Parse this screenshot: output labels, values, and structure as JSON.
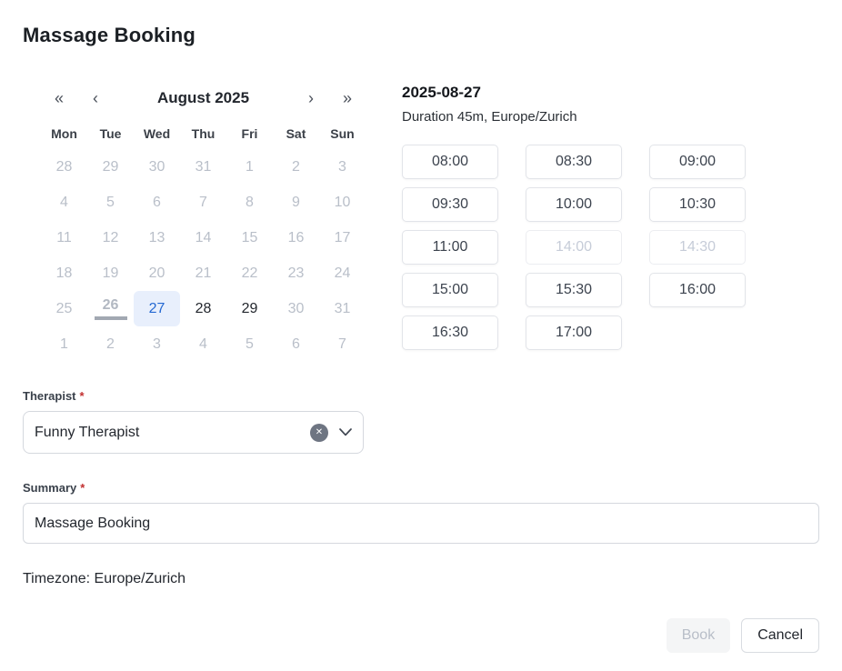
{
  "title": "Massage Booking",
  "calendar": {
    "nav": {
      "first": "«",
      "prev": "‹",
      "label": "August 2025",
      "next": "›",
      "last": "»"
    },
    "weekdays": [
      "Mon",
      "Tue",
      "Wed",
      "Thu",
      "Fri",
      "Sat",
      "Sun"
    ],
    "weeks": [
      [
        {
          "day": "28",
          "state": "muted"
        },
        {
          "day": "29",
          "state": "muted"
        },
        {
          "day": "30",
          "state": "muted"
        },
        {
          "day": "31",
          "state": "muted"
        },
        {
          "day": "1",
          "state": "muted"
        },
        {
          "day": "2",
          "state": "muted"
        },
        {
          "day": "3",
          "state": "muted"
        }
      ],
      [
        {
          "day": "4",
          "state": "muted"
        },
        {
          "day": "5",
          "state": "muted"
        },
        {
          "day": "6",
          "state": "muted"
        },
        {
          "day": "7",
          "state": "muted"
        },
        {
          "day": "8",
          "state": "muted"
        },
        {
          "day": "9",
          "state": "muted"
        },
        {
          "day": "10",
          "state": "muted"
        }
      ],
      [
        {
          "day": "11",
          "state": "muted"
        },
        {
          "day": "12",
          "state": "muted"
        },
        {
          "day": "13",
          "state": "muted"
        },
        {
          "day": "14",
          "state": "muted"
        },
        {
          "day": "15",
          "state": "muted"
        },
        {
          "day": "16",
          "state": "muted"
        },
        {
          "day": "17",
          "state": "muted"
        }
      ],
      [
        {
          "day": "18",
          "state": "muted"
        },
        {
          "day": "19",
          "state": "muted"
        },
        {
          "day": "20",
          "state": "muted"
        },
        {
          "day": "21",
          "state": "muted"
        },
        {
          "day": "22",
          "state": "muted"
        },
        {
          "day": "23",
          "state": "muted"
        },
        {
          "day": "24",
          "state": "muted"
        }
      ],
      [
        {
          "day": "25",
          "state": "muted"
        },
        {
          "day": "26",
          "state": "today"
        },
        {
          "day": "27",
          "state": "selected"
        },
        {
          "day": "28",
          "state": "enabled"
        },
        {
          "day": "29",
          "state": "enabled"
        },
        {
          "day": "30",
          "state": "muted"
        },
        {
          "day": "31",
          "state": "muted"
        }
      ],
      [
        {
          "day": "1",
          "state": "muted"
        },
        {
          "day": "2",
          "state": "muted"
        },
        {
          "day": "3",
          "state": "muted"
        },
        {
          "day": "4",
          "state": "muted"
        },
        {
          "day": "5",
          "state": "muted"
        },
        {
          "day": "6",
          "state": "muted"
        },
        {
          "day": "7",
          "state": "muted"
        }
      ]
    ]
  },
  "slots_panel": {
    "date_heading": "2025-08-27",
    "subtitle": "Duration 45m, Europe/Zurich",
    "slots": [
      {
        "label": "08:00",
        "enabled": true
      },
      {
        "label": "08:30",
        "enabled": true
      },
      {
        "label": "09:00",
        "enabled": true
      },
      {
        "label": "09:30",
        "enabled": true
      },
      {
        "label": "10:00",
        "enabled": true
      },
      {
        "label": "10:30",
        "enabled": true
      },
      {
        "label": "11:00",
        "enabled": true
      },
      {
        "label": "14:00",
        "enabled": false
      },
      {
        "label": "14:30",
        "enabled": false
      },
      {
        "label": "15:00",
        "enabled": true
      },
      {
        "label": "15:30",
        "enabled": true
      },
      {
        "label": "16:00",
        "enabled": true
      },
      {
        "label": "16:30",
        "enabled": true
      },
      {
        "label": "17:00",
        "enabled": true
      }
    ]
  },
  "form": {
    "therapist": {
      "label": "Therapist",
      "required_mark": "*",
      "value": "Funny Therapist",
      "clear_icon_glyph": "✕"
    },
    "summary": {
      "label": "Summary",
      "required_mark": "*",
      "value": "Massage Booking"
    }
  },
  "footer": {
    "timezone_text": "Timezone: Europe/Zurich",
    "book_label": "Book",
    "cancel_label": "Cancel"
  },
  "colors": {
    "accent": "#2468d2",
    "selected_day_bg": "#e8effc",
    "required_asterisk": "#c22f2f",
    "muted_day": "#b9bfc9",
    "disabled_slot_text": "#c6ccd8",
    "today_underline": "#a2a8b2"
  }
}
